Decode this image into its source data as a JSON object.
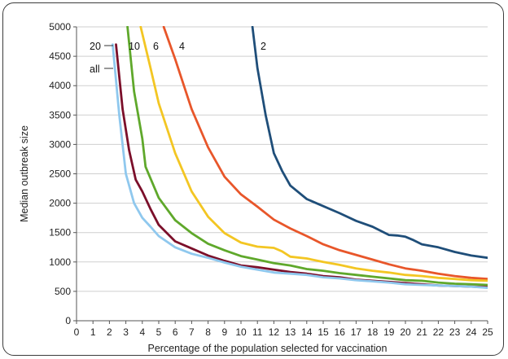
{
  "chart_data": {
    "type": "line",
    "xlabel": "Percentage of the population selected for vaccination",
    "ylabel": "Median outbreak size",
    "xlim": [
      0,
      25
    ],
    "ylim": [
      0,
      5000
    ],
    "x_ticks": [
      0,
      1,
      2,
      3,
      4,
      5,
      6,
      7,
      8,
      9,
      10,
      11,
      12,
      13,
      14,
      15,
      16,
      17,
      18,
      19,
      20,
      21,
      22,
      23,
      24,
      25
    ],
    "y_ticks": [
      0,
      500,
      1000,
      1500,
      2000,
      2500,
      3000,
      3500,
      4000,
      4500,
      5000
    ],
    "grid": "horizontal",
    "legend": "inline labels at top-left",
    "series": [
      {
        "name": "2",
        "color": "#1f4e79",
        "points": [
          [
            10.7,
            5000
          ],
          [
            11,
            4300
          ],
          [
            11.5,
            3500
          ],
          [
            12,
            2850
          ],
          [
            12.5,
            2550
          ],
          [
            13,
            2300
          ],
          [
            14,
            2070
          ],
          [
            15,
            1950
          ],
          [
            16,
            1830
          ],
          [
            17,
            1700
          ],
          [
            18,
            1600
          ],
          [
            19,
            1460
          ],
          [
            19.5,
            1450
          ],
          [
            20,
            1430
          ],
          [
            20.5,
            1370
          ],
          [
            21,
            1300
          ],
          [
            22,
            1250
          ],
          [
            23,
            1170
          ],
          [
            24,
            1110
          ],
          [
            25,
            1070
          ]
        ]
      },
      {
        "name": "4",
        "color": "#e8562a",
        "points": [
          [
            5.3,
            5000
          ],
          [
            6,
            4450
          ],
          [
            7,
            3600
          ],
          [
            8,
            2950
          ],
          [
            9,
            2450
          ],
          [
            10,
            2150
          ],
          [
            11,
            1940
          ],
          [
            12,
            1720
          ],
          [
            13,
            1570
          ],
          [
            14,
            1440
          ],
          [
            15,
            1300
          ],
          [
            16,
            1200
          ],
          [
            17,
            1120
          ],
          [
            18,
            1040
          ],
          [
            19,
            960
          ],
          [
            20,
            890
          ],
          [
            21,
            850
          ],
          [
            22,
            800
          ],
          [
            23,
            760
          ],
          [
            24,
            730
          ],
          [
            25,
            710
          ]
        ]
      },
      {
        "name": "6",
        "color": "#f3c623",
        "points": [
          [
            3.9,
            5000
          ],
          [
            4.5,
            4300
          ],
          [
            5,
            3700
          ],
          [
            6,
            2850
          ],
          [
            7,
            2200
          ],
          [
            8,
            1770
          ],
          [
            9,
            1490
          ],
          [
            10,
            1330
          ],
          [
            11,
            1260
          ],
          [
            12,
            1240
          ],
          [
            12.5,
            1180
          ],
          [
            13,
            1090
          ],
          [
            14,
            1060
          ],
          [
            15,
            1000
          ],
          [
            16,
            950
          ],
          [
            17,
            890
          ],
          [
            18,
            850
          ],
          [
            19,
            820
          ],
          [
            20,
            780
          ],
          [
            21,
            760
          ],
          [
            22,
            730
          ],
          [
            23,
            710
          ],
          [
            24,
            690
          ],
          [
            25,
            680
          ]
        ]
      },
      {
        "name": "10",
        "color": "#5fa82b",
        "points": [
          [
            3.1,
            5000
          ],
          [
            3.5,
            3900
          ],
          [
            4,
            3100
          ],
          [
            4.2,
            2620
          ],
          [
            5,
            2090
          ],
          [
            6,
            1710
          ],
          [
            7,
            1490
          ],
          [
            8,
            1310
          ],
          [
            9,
            1200
          ],
          [
            10,
            1100
          ],
          [
            11,
            1040
          ],
          [
            12,
            980
          ],
          [
            13,
            940
          ],
          [
            14,
            880
          ],
          [
            15,
            850
          ],
          [
            16,
            810
          ],
          [
            17,
            780
          ],
          [
            18,
            750
          ],
          [
            19,
            720
          ],
          [
            20,
            690
          ],
          [
            21,
            680
          ],
          [
            22,
            650
          ],
          [
            23,
            630
          ],
          [
            24,
            620
          ],
          [
            25,
            610
          ]
        ]
      },
      {
        "name": "all",
        "color": "#7b0f2a",
        "points": [
          [
            2.4,
            4700
          ],
          [
            2.8,
            3600
          ],
          [
            3.2,
            2900
          ],
          [
            3.6,
            2400
          ],
          [
            4,
            2200
          ],
          [
            4.5,
            1900
          ],
          [
            5,
            1630
          ],
          [
            6,
            1350
          ],
          [
            7,
            1230
          ],
          [
            8,
            1110
          ],
          [
            9,
            1020
          ],
          [
            10,
            940
          ],
          [
            11,
            910
          ],
          [
            12,
            870
          ],
          [
            13,
            830
          ],
          [
            14,
            800
          ],
          [
            15,
            760
          ],
          [
            16,
            740
          ],
          [
            17,
            700
          ],
          [
            18,
            680
          ],
          [
            19,
            660
          ],
          [
            20,
            640
          ],
          [
            21,
            620
          ],
          [
            22,
            600
          ],
          [
            23,
            590
          ],
          [
            24,
            580
          ],
          [
            25,
            570
          ]
        ]
      },
      {
        "name": "20",
        "color": "#8fc8ee",
        "points": [
          [
            2.2,
            4700
          ],
          [
            2.6,
            3500
          ],
          [
            3,
            2500
          ],
          [
            3.5,
            2000
          ],
          [
            4,
            1750
          ],
          [
            4.5,
            1600
          ],
          [
            5,
            1440
          ],
          [
            6,
            1250
          ],
          [
            7,
            1140
          ],
          [
            8,
            1070
          ],
          [
            9,
            990
          ],
          [
            10,
            920
          ],
          [
            11,
            870
          ],
          [
            12,
            820
          ],
          [
            13,
            800
          ],
          [
            14,
            780
          ],
          [
            15,
            740
          ],
          [
            16,
            720
          ],
          [
            17,
            690
          ],
          [
            18,
            670
          ],
          [
            19,
            650
          ],
          [
            20,
            620
          ],
          [
            21,
            610
          ],
          [
            22,
            600
          ],
          [
            23,
            590
          ],
          [
            24,
            580
          ],
          [
            25,
            560
          ]
        ]
      }
    ]
  }
}
